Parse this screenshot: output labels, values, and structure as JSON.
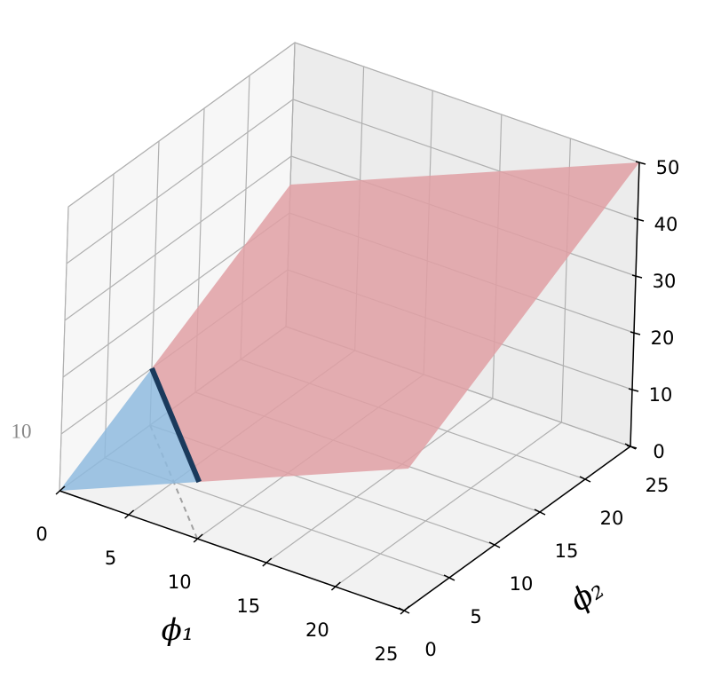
{
  "chart_data": {
    "type": "surface3d",
    "xlabel": "ϕ₁",
    "ylabel": "ϕ₂",
    "annotation": "10",
    "xlim": [
      0,
      25
    ],
    "ylim": [
      0,
      25
    ],
    "zlim": [
      0,
      50
    ],
    "xticks": [
      0,
      5,
      10,
      15,
      20,
      25
    ],
    "yticks": [
      0,
      5,
      10,
      15,
      20,
      25
    ],
    "zticks": [
      0,
      10,
      20,
      30,
      40,
      50
    ],
    "grid": true,
    "regions": [
      {
        "color": "#8fbbdf",
        "x": [
          0,
          10,
          0
        ],
        "y": [
          0,
          0,
          10
        ],
        "z": [
          0,
          10,
          10
        ]
      },
      {
        "color": "#e0a0a5",
        "x": [
          10,
          25,
          25,
          0,
          0
        ],
        "y": [
          0,
          0,
          25,
          25,
          10
        ],
        "z": [
          10,
          25,
          50,
          25,
          10
        ]
      }
    ],
    "boundary": {
      "color": "#1a3a5c",
      "x": [
        10,
        0
      ],
      "y": [
        0,
        10
      ],
      "z": [
        10,
        10
      ]
    },
    "floor_projection": {
      "color": "#a0a0a0",
      "x": [
        10,
        0
      ],
      "y": [
        0,
        10
      ],
      "z": [
        0,
        0
      ]
    }
  }
}
